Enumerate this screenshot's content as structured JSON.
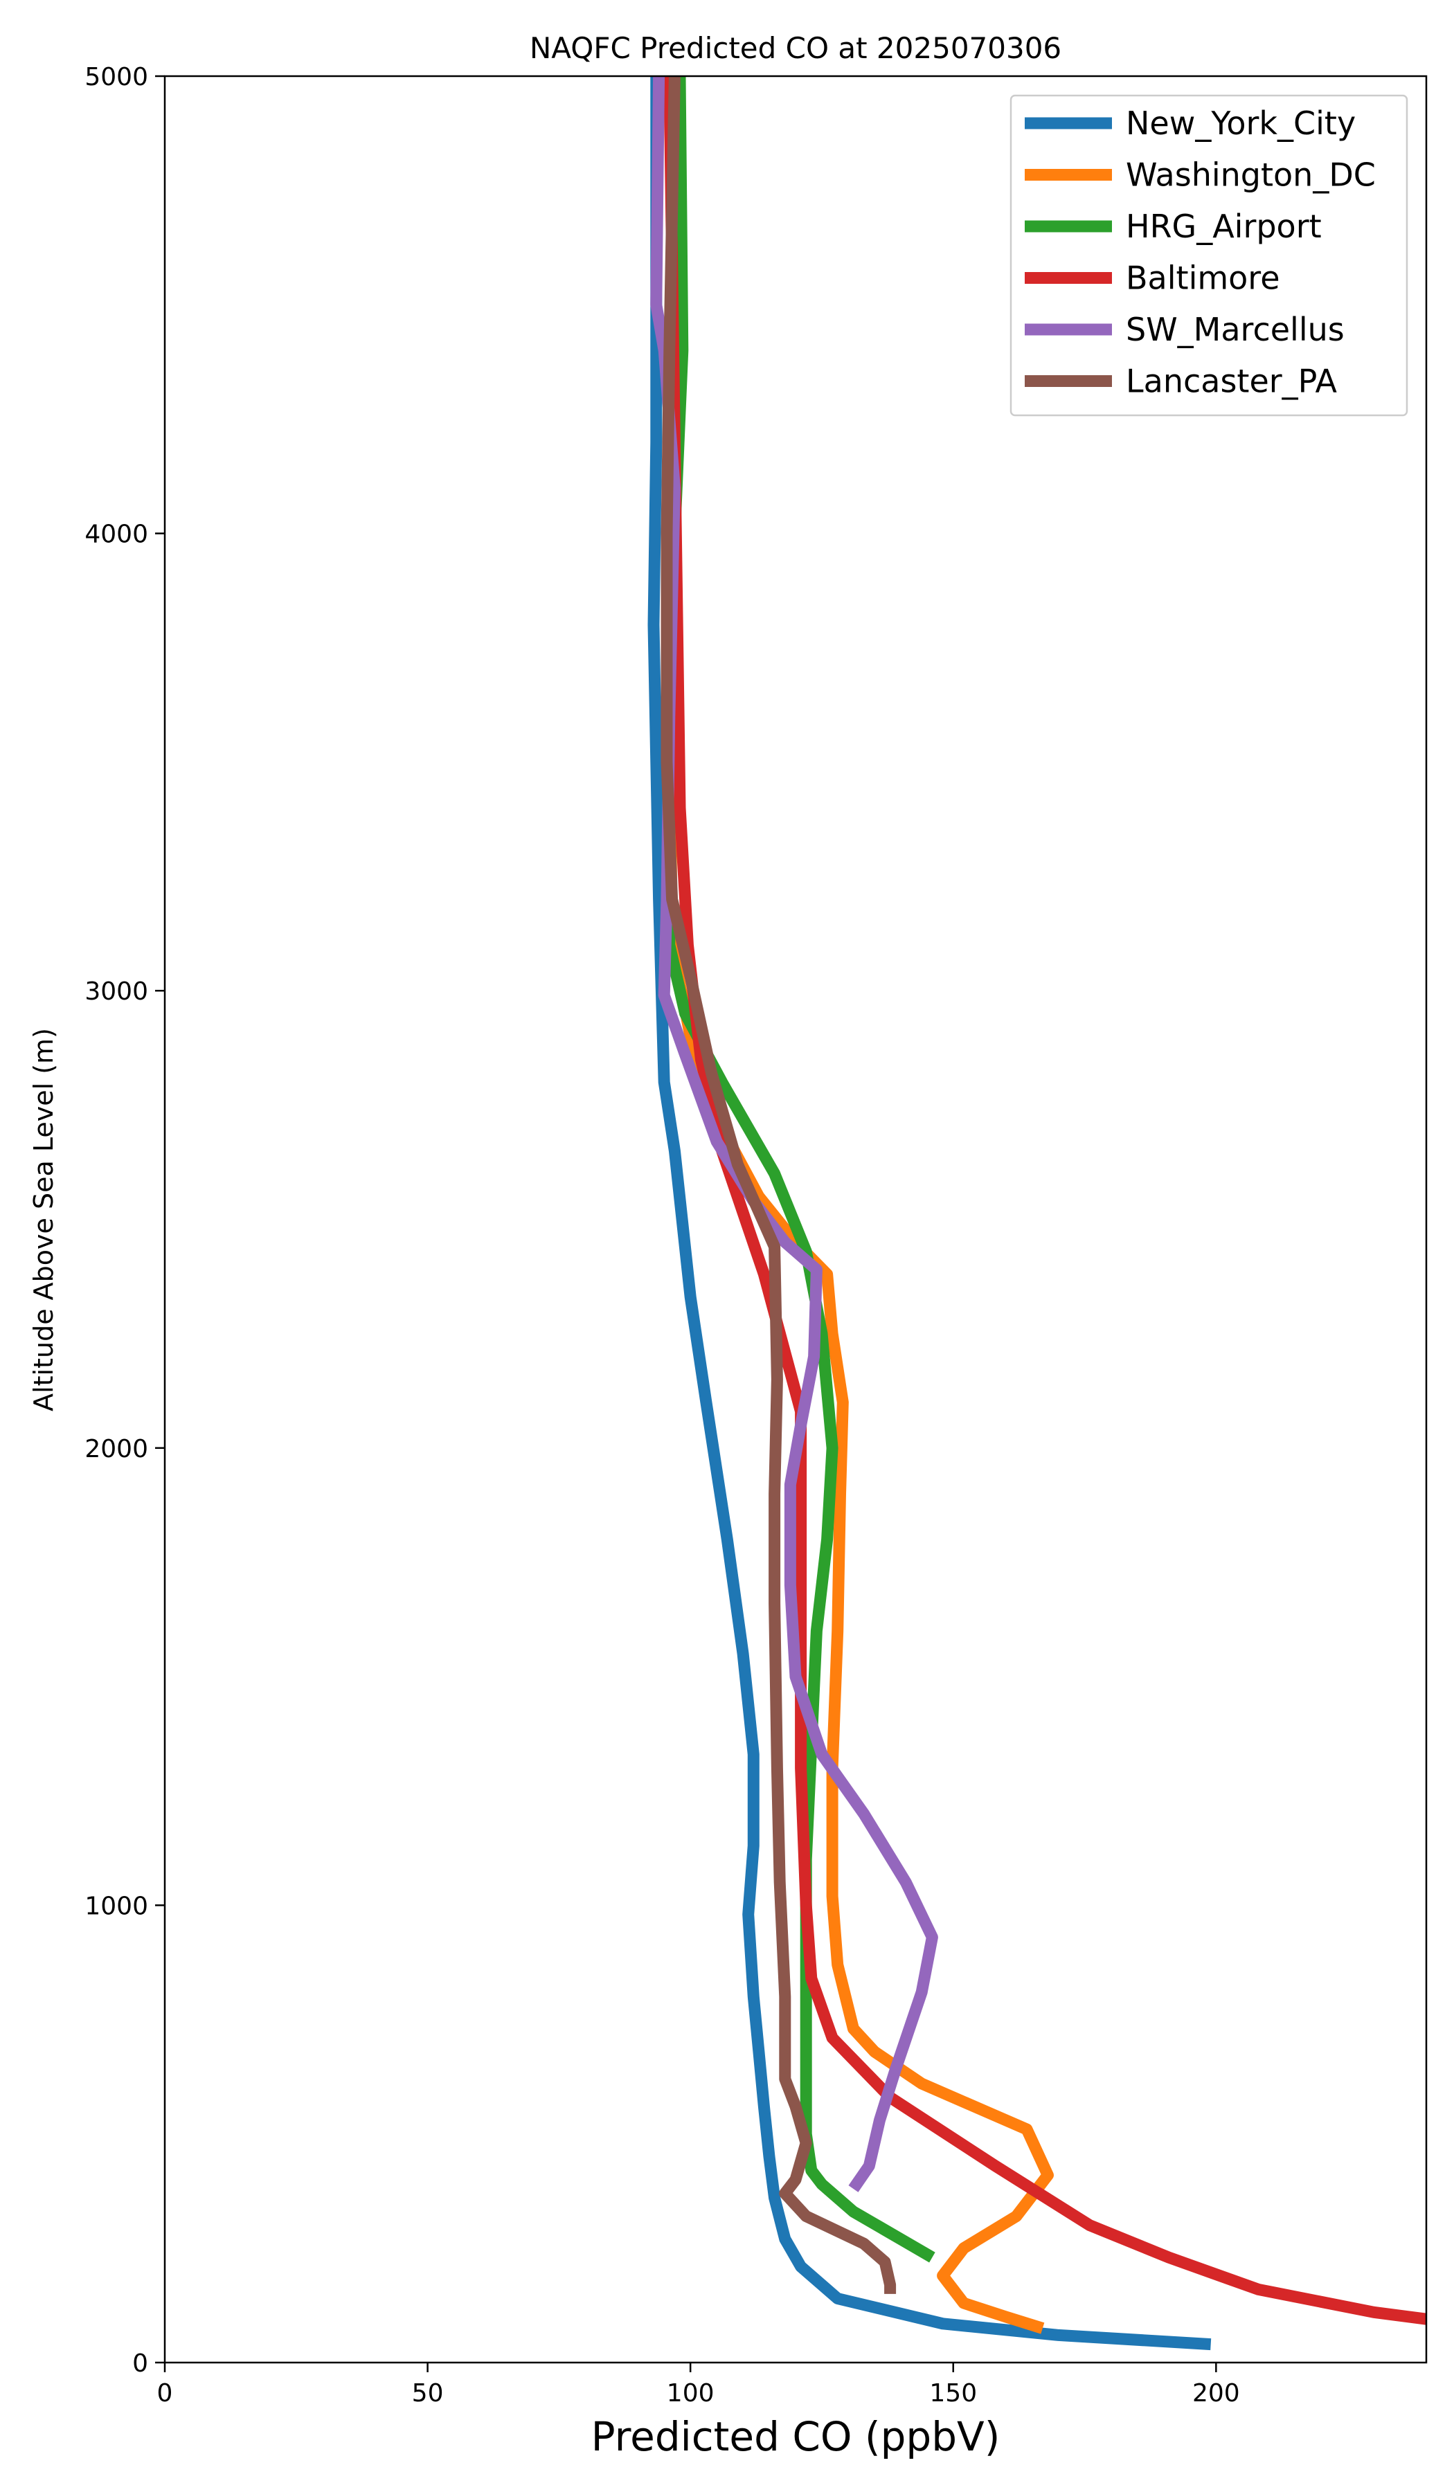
{
  "chart_data": {
    "type": "line",
    "title": "NAQFC Predicted CO at 2025070306",
    "xlabel": "Predicted CO (ppbV)",
    "ylabel": "Altitude Above Sea Level (m)",
    "xlim": [
      0,
      240
    ],
    "ylim": [
      0,
      5000
    ],
    "x_ticks": [
      "0",
      "50",
      "100",
      "150",
      "200"
    ],
    "y_ticks": [
      "0",
      "1000",
      "2000",
      "3000",
      "4000",
      "5000"
    ],
    "grid": false,
    "legend_position": "top-right",
    "series": [
      {
        "name": "New_York_City",
        "color": "#1f77b4",
        "points": [
          [
            93.5,
            5000
          ],
          [
            93.5,
            4200
          ],
          [
            93,
            3800
          ],
          [
            93.5,
            3500
          ],
          [
            94,
            3200
          ],
          [
            95,
            2800
          ],
          [
            97,
            2650
          ],
          [
            100,
            2330
          ],
          [
            103,
            2100
          ],
          [
            107,
            1800
          ],
          [
            110,
            1550
          ],
          [
            112,
            1330
          ],
          [
            112,
            1130
          ],
          [
            111,
            980
          ],
          [
            112,
            800
          ],
          [
            113,
            680
          ],
          [
            114,
            560
          ],
          [
            115,
            450
          ],
          [
            116,
            360
          ],
          [
            118,
            270
          ],
          [
            121,
            210
          ],
          [
            128,
            140
          ],
          [
            148,
            85
          ],
          [
            170,
            60
          ],
          [
            199,
            40
          ]
        ]
      },
      {
        "name": "Washington_DC",
        "color": "#ff7f0e",
        "points": [
          [
            97,
            5000
          ],
          [
            96.5,
            4200
          ],
          [
            96,
            3600
          ],
          [
            96.5,
            3100
          ],
          [
            100,
            2900
          ],
          [
            106,
            2700
          ],
          [
            113,
            2550
          ],
          [
            120,
            2450
          ],
          [
            126,
            2380
          ],
          [
            127,
            2250
          ],
          [
            129,
            2100
          ],
          [
            128.5,
            1900
          ],
          [
            128,
            1600
          ],
          [
            127,
            1300
          ],
          [
            127,
            1020
          ],
          [
            128,
            870
          ],
          [
            131,
            730
          ],
          [
            135,
            680
          ],
          [
            144,
            610
          ],
          [
            164,
            510
          ],
          [
            168,
            410
          ],
          [
            162,
            320
          ],
          [
            152,
            250
          ],
          [
            148,
            190
          ],
          [
            152,
            130
          ],
          [
            160,
            100
          ],
          [
            167,
            75
          ]
        ]
      },
      {
        "name": "HRG_Airport",
        "color": "#2ca02c",
        "points": [
          [
            98,
            5000
          ],
          [
            98.5,
            4400
          ],
          [
            97,
            4000
          ],
          [
            96,
            3500
          ],
          [
            96,
            3100
          ],
          [
            99,
            2950
          ],
          [
            106,
            2800
          ],
          [
            116,
            2600
          ],
          [
            122,
            2430
          ],
          [
            125,
            2250
          ],
          [
            127,
            2000
          ],
          [
            126,
            1800
          ],
          [
            124,
            1600
          ],
          [
            123,
            1350
          ],
          [
            122,
            1100
          ],
          [
            122,
            900
          ],
          [
            122,
            700
          ],
          [
            122,
            500
          ],
          [
            123,
            420
          ],
          [
            125,
            390
          ],
          [
            131,
            330
          ],
          [
            140,
            270
          ],
          [
            146,
            230
          ]
        ]
      },
      {
        "name": "Baltimore",
        "color": "#d62728",
        "points": [
          [
            96,
            5000
          ],
          [
            97,
            4200
          ],
          [
            97.5,
            3800
          ],
          [
            98,
            3400
          ],
          [
            99.5,
            3100
          ],
          [
            102,
            2850
          ],
          [
            106,
            2650
          ],
          [
            114,
            2380
          ],
          [
            121,
            2080
          ],
          [
            121,
            1700
          ],
          [
            121,
            1300
          ],
          [
            122,
            1000
          ],
          [
            123,
            840
          ],
          [
            127,
            710
          ],
          [
            138,
            580
          ],
          [
            158,
            430
          ],
          [
            176,
            300
          ],
          [
            191,
            230
          ],
          [
            208,
            160
          ],
          [
            230,
            110
          ],
          [
            240,
            95
          ]
        ]
      },
      {
        "name": "SW_Marcellus",
        "color": "#9467bd",
        "points": [
          [
            94,
            5000
          ],
          [
            93.5,
            4500
          ],
          [
            95,
            4400
          ],
          [
            97,
            4100
          ],
          [
            96,
            3600
          ],
          [
            95.5,
            3200
          ],
          [
            95,
            2990
          ],
          [
            99,
            2860
          ],
          [
            105,
            2670
          ],
          [
            112,
            2540
          ],
          [
            118,
            2450
          ],
          [
            124,
            2390
          ],
          [
            123.5,
            2200
          ],
          [
            121,
            2050
          ],
          [
            119,
            1920
          ],
          [
            119,
            1700
          ],
          [
            120,
            1500
          ],
          [
            125,
            1330
          ],
          [
            133,
            1200
          ],
          [
            141,
            1050
          ],
          [
            146,
            930
          ],
          [
            144,
            810
          ],
          [
            139,
            640
          ],
          [
            136,
            530
          ],
          [
            134,
            430
          ],
          [
            131,
            380
          ]
        ]
      },
      {
        "name": "Lancaster_PA",
        "color": "#8c564b",
        "points": [
          [
            97,
            5000
          ],
          [
            96,
            4400
          ],
          [
            95.5,
            4000
          ],
          [
            95.5,
            3500
          ],
          [
            96.5,
            3200
          ],
          [
            100,
            3030
          ],
          [
            104,
            2820
          ],
          [
            109,
            2620
          ],
          [
            116,
            2440
          ],
          [
            116.5,
            2150
          ],
          [
            116,
            1900
          ],
          [
            116,
            1660
          ],
          [
            116.5,
            1300
          ],
          [
            117,
            1050
          ],
          [
            118,
            800
          ],
          [
            118,
            620
          ],
          [
            120,
            560
          ],
          [
            122,
            480
          ],
          [
            120,
            400
          ],
          [
            118,
            370
          ],
          [
            122,
            320
          ],
          [
            133,
            260
          ],
          [
            137,
            220
          ],
          [
            138,
            170
          ],
          [
            138,
            150
          ]
        ]
      }
    ]
  }
}
